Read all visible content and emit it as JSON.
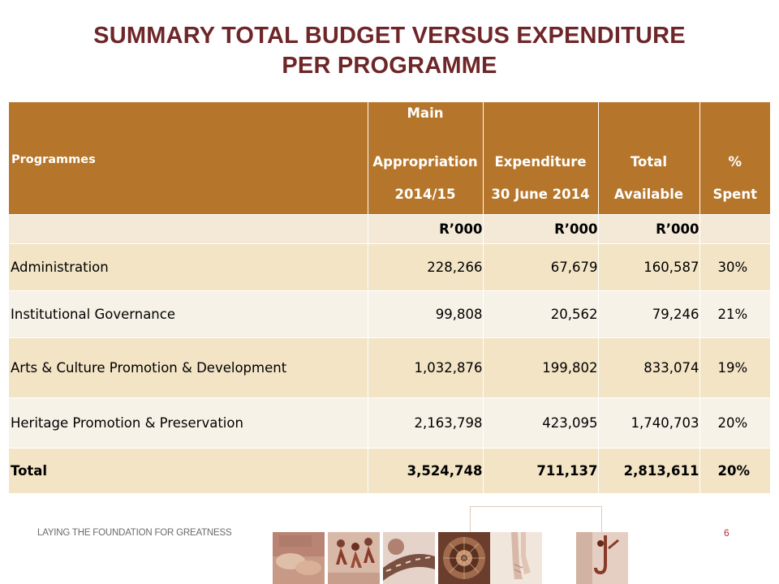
{
  "title": {
    "line1": "SUMMARY TOTAL BUDGET VERSUS EXPENDITURE",
    "line2": "PER PROGRAMME"
  },
  "table": {
    "header": {
      "programmes": "Programmes",
      "main": [
        "Main",
        "Appropriation",
        "2014/15"
      ],
      "expenditure": [
        "Expenditure",
        "30 June 2014"
      ],
      "total": [
        "Total",
        "Available"
      ],
      "pct": [
        "%",
        "Spent"
      ]
    },
    "units": [
      "R’000",
      "R’000",
      "R’000"
    ],
    "rows": [
      {
        "programme": "Administration",
        "main": "228,266",
        "expenditure": "67,679",
        "available": "160,587",
        "pct": "30%"
      },
      {
        "programme": "Institutional Governance",
        "main": "99,808",
        "expenditure": "20,562",
        "available": "79,246",
        "pct": "21%"
      },
      {
        "programme": "Arts & Culture Promotion & Development",
        "main": "1,032,876",
        "expenditure": "199,802",
        "available": "833,074",
        "pct": "19%"
      },
      {
        "programme": "Heritage Promotion & Preservation",
        "main": "2,163,798",
        "expenditure": "423,095",
        "available": "1,740,703",
        "pct": "20%"
      },
      {
        "programme": "Total",
        "main": "3,524,748",
        "expenditure": "711,137",
        "available": "2,813,611",
        "pct": "20%"
      }
    ]
  },
  "footer": {
    "tagline": "LAYING THE FOUNDATION FOR GREATNESS",
    "page_number": "6"
  },
  "colors": {
    "title": "#6e2628",
    "header_bg": "#b5762b",
    "row_dark": "#f2e4c5",
    "row_light": "#f6f2e7"
  }
}
